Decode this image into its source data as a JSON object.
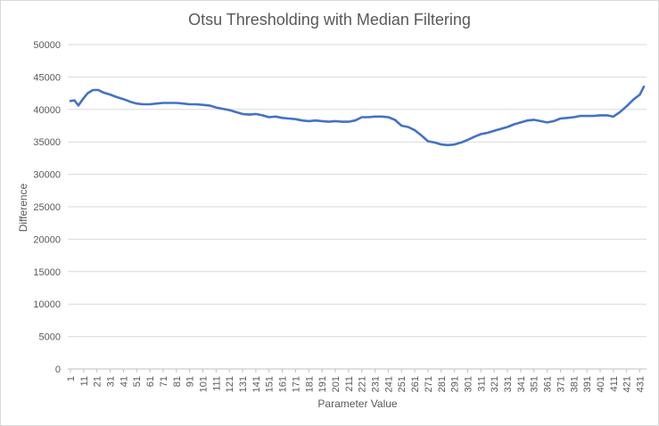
{
  "chart_data": {
    "type": "line",
    "title": "Otsu Thresholding with Median Filtering",
    "xlabel": "Parameter Value",
    "ylabel": "Difference",
    "ylim": [
      0,
      50000
    ],
    "yticks": [
      "0",
      "5000",
      "10000",
      "15000",
      "20000",
      "25000",
      "30000",
      "35000",
      "40000",
      "45000",
      "50000"
    ],
    "xticks": [
      "1",
      "11",
      "21",
      "31",
      "41",
      "51",
      "61",
      "71",
      "81",
      "91",
      "101",
      "111",
      "121",
      "131",
      "141",
      "151",
      "161",
      "171",
      "181",
      "191",
      "201",
      "211",
      "221",
      "231",
      "241",
      "251",
      "261",
      "271",
      "281",
      "291",
      "301",
      "311",
      "321",
      "331",
      "341",
      "351",
      "361",
      "371",
      "381",
      "391",
      "401",
      "411",
      "421",
      "431"
    ],
    "xlim": [
      1,
      434
    ],
    "grid": "horizontal",
    "legend": "none",
    "line_color": "#4472c4",
    "series": [
      {
        "x": [
          1,
          4,
          7,
          10,
          14,
          18,
          22,
          26,
          31,
          36,
          41,
          46,
          51,
          56,
          61,
          66,
          71,
          76,
          81,
          86,
          91,
          96,
          101,
          106,
          111,
          116,
          121,
          126,
          131,
          136,
          141,
          146,
          151,
          156,
          161,
          166,
          171,
          176,
          181,
          186,
          191,
          196,
          201,
          206,
          211,
          216,
          221,
          226,
          231,
          236,
          241,
          246,
          251,
          256,
          261,
          266,
          271,
          276,
          281,
          286,
          291,
          296,
          301,
          306,
          311,
          316,
          321,
          326,
          331,
          336,
          341,
          346,
          351,
          356,
          361,
          366,
          371,
          376,
          381,
          386,
          391,
          396,
          401,
          406,
          411,
          416,
          421,
          426,
          431,
          434
        ],
        "y": [
          41300,
          41400,
          40600,
          41500,
          42500,
          43000,
          43000,
          42600,
          42300,
          41900,
          41600,
          41200,
          40900,
          40800,
          40800,
          40900,
          41000,
          41000,
          41000,
          40900,
          40800,
          40800,
          40700,
          40600,
          40300,
          40100,
          39900,
          39600,
          39300,
          39200,
          39300,
          39100,
          38800,
          38900,
          38700,
          38600,
          38500,
          38300,
          38200,
          38300,
          38200,
          38100,
          38200,
          38100,
          38100,
          38300,
          38800,
          38800,
          38900,
          38900,
          38800,
          38400,
          37500,
          37300,
          36800,
          36000,
          35100,
          34900,
          34600,
          34500,
          34600,
          34900,
          35300,
          35800,
          36200,
          36400,
          36700,
          37000,
          37300,
          37700,
          38000,
          38300,
          38400,
          38200,
          38000,
          38200,
          38600,
          38700,
          38800,
          39000,
          39000,
          39000,
          39100,
          39100,
          38900,
          39600,
          40500,
          41500,
          42300,
          43500
        ]
      }
    ]
  }
}
